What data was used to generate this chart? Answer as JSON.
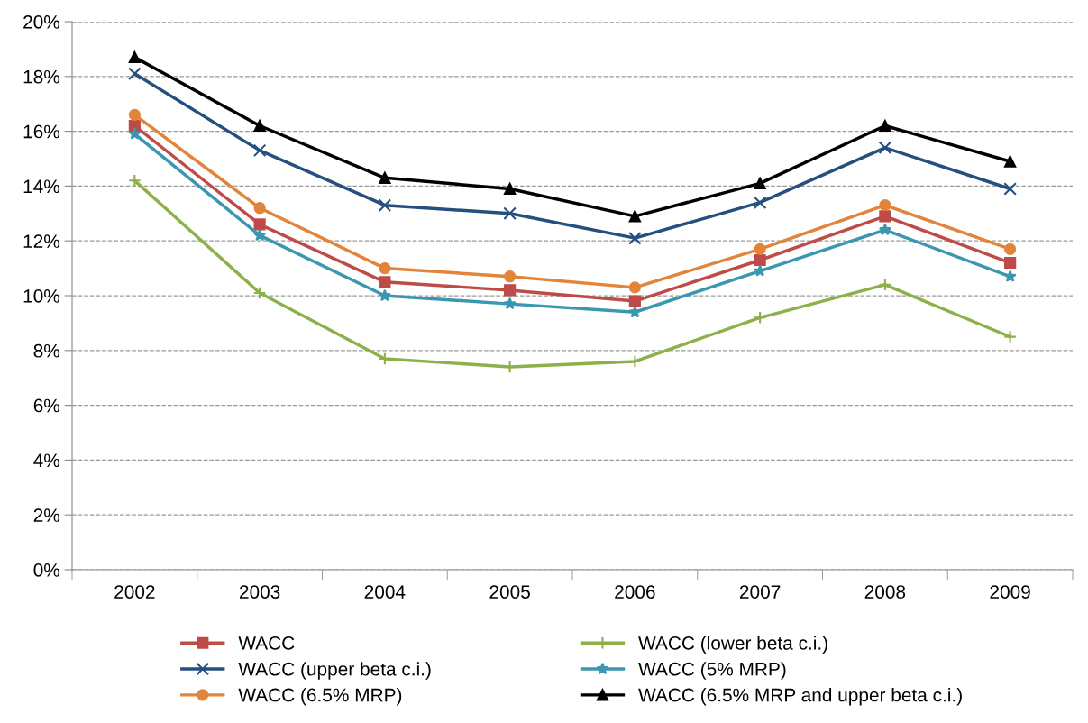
{
  "chart_data": {
    "type": "line",
    "categories": [
      "2002",
      "2003",
      "2004",
      "2005",
      "2006",
      "2007",
      "2008",
      "2009"
    ],
    "ylim": [
      0,
      20
    ],
    "yticks": [
      {
        "value": 0,
        "label": "0%"
      },
      {
        "value": 2,
        "label": "2%"
      },
      {
        "value": 4,
        "label": "4%"
      },
      {
        "value": 6,
        "label": "6%"
      },
      {
        "value": 8,
        "label": "8%"
      },
      {
        "value": 10,
        "label": "10%"
      },
      {
        "value": 12,
        "label": "12%"
      },
      {
        "value": 14,
        "label": "14%"
      },
      {
        "value": 16,
        "label": "16%"
      },
      {
        "value": 18,
        "label": "18%"
      },
      {
        "value": 20,
        "label": "20%"
      }
    ],
    "grid": "y",
    "legend": "bottom",
    "line_style": "solid",
    "series": [
      {
        "name": "WACC",
        "color": "#be4b48",
        "marker": "square",
        "values": [
          16.2,
          12.6,
          10.5,
          10.2,
          9.8,
          11.3,
          12.9,
          11.2
        ]
      },
      {
        "name": "WACC (lower beta c.i.)",
        "color": "#8cb04a",
        "marker": "plus",
        "values": [
          14.2,
          10.1,
          7.7,
          7.4,
          7.6,
          9.2,
          10.4,
          8.5
        ]
      },
      {
        "name": "WACC (upper beta c.i.)",
        "color": "#254f7e",
        "marker": "cross",
        "values": [
          18.1,
          15.3,
          13.3,
          13.0,
          12.1,
          13.4,
          15.4,
          13.9
        ]
      },
      {
        "name": "WACC (5% MRP)",
        "color": "#3b97b0",
        "marker": "star",
        "values": [
          15.9,
          12.2,
          10.0,
          9.7,
          9.4,
          10.9,
          12.4,
          10.7
        ]
      },
      {
        "name": "WACC (6.5% MRP)",
        "color": "#e2843a",
        "marker": "circle",
        "values": [
          16.6,
          13.2,
          11.0,
          10.7,
          10.3,
          11.7,
          13.3,
          11.7
        ]
      },
      {
        "name": "WACC (6.5% MRP and upper beta c.i.)",
        "color": "#000000",
        "marker": "triangle",
        "values": [
          18.7,
          16.2,
          14.3,
          13.9,
          12.9,
          14.1,
          16.2,
          14.9
        ]
      }
    ]
  }
}
